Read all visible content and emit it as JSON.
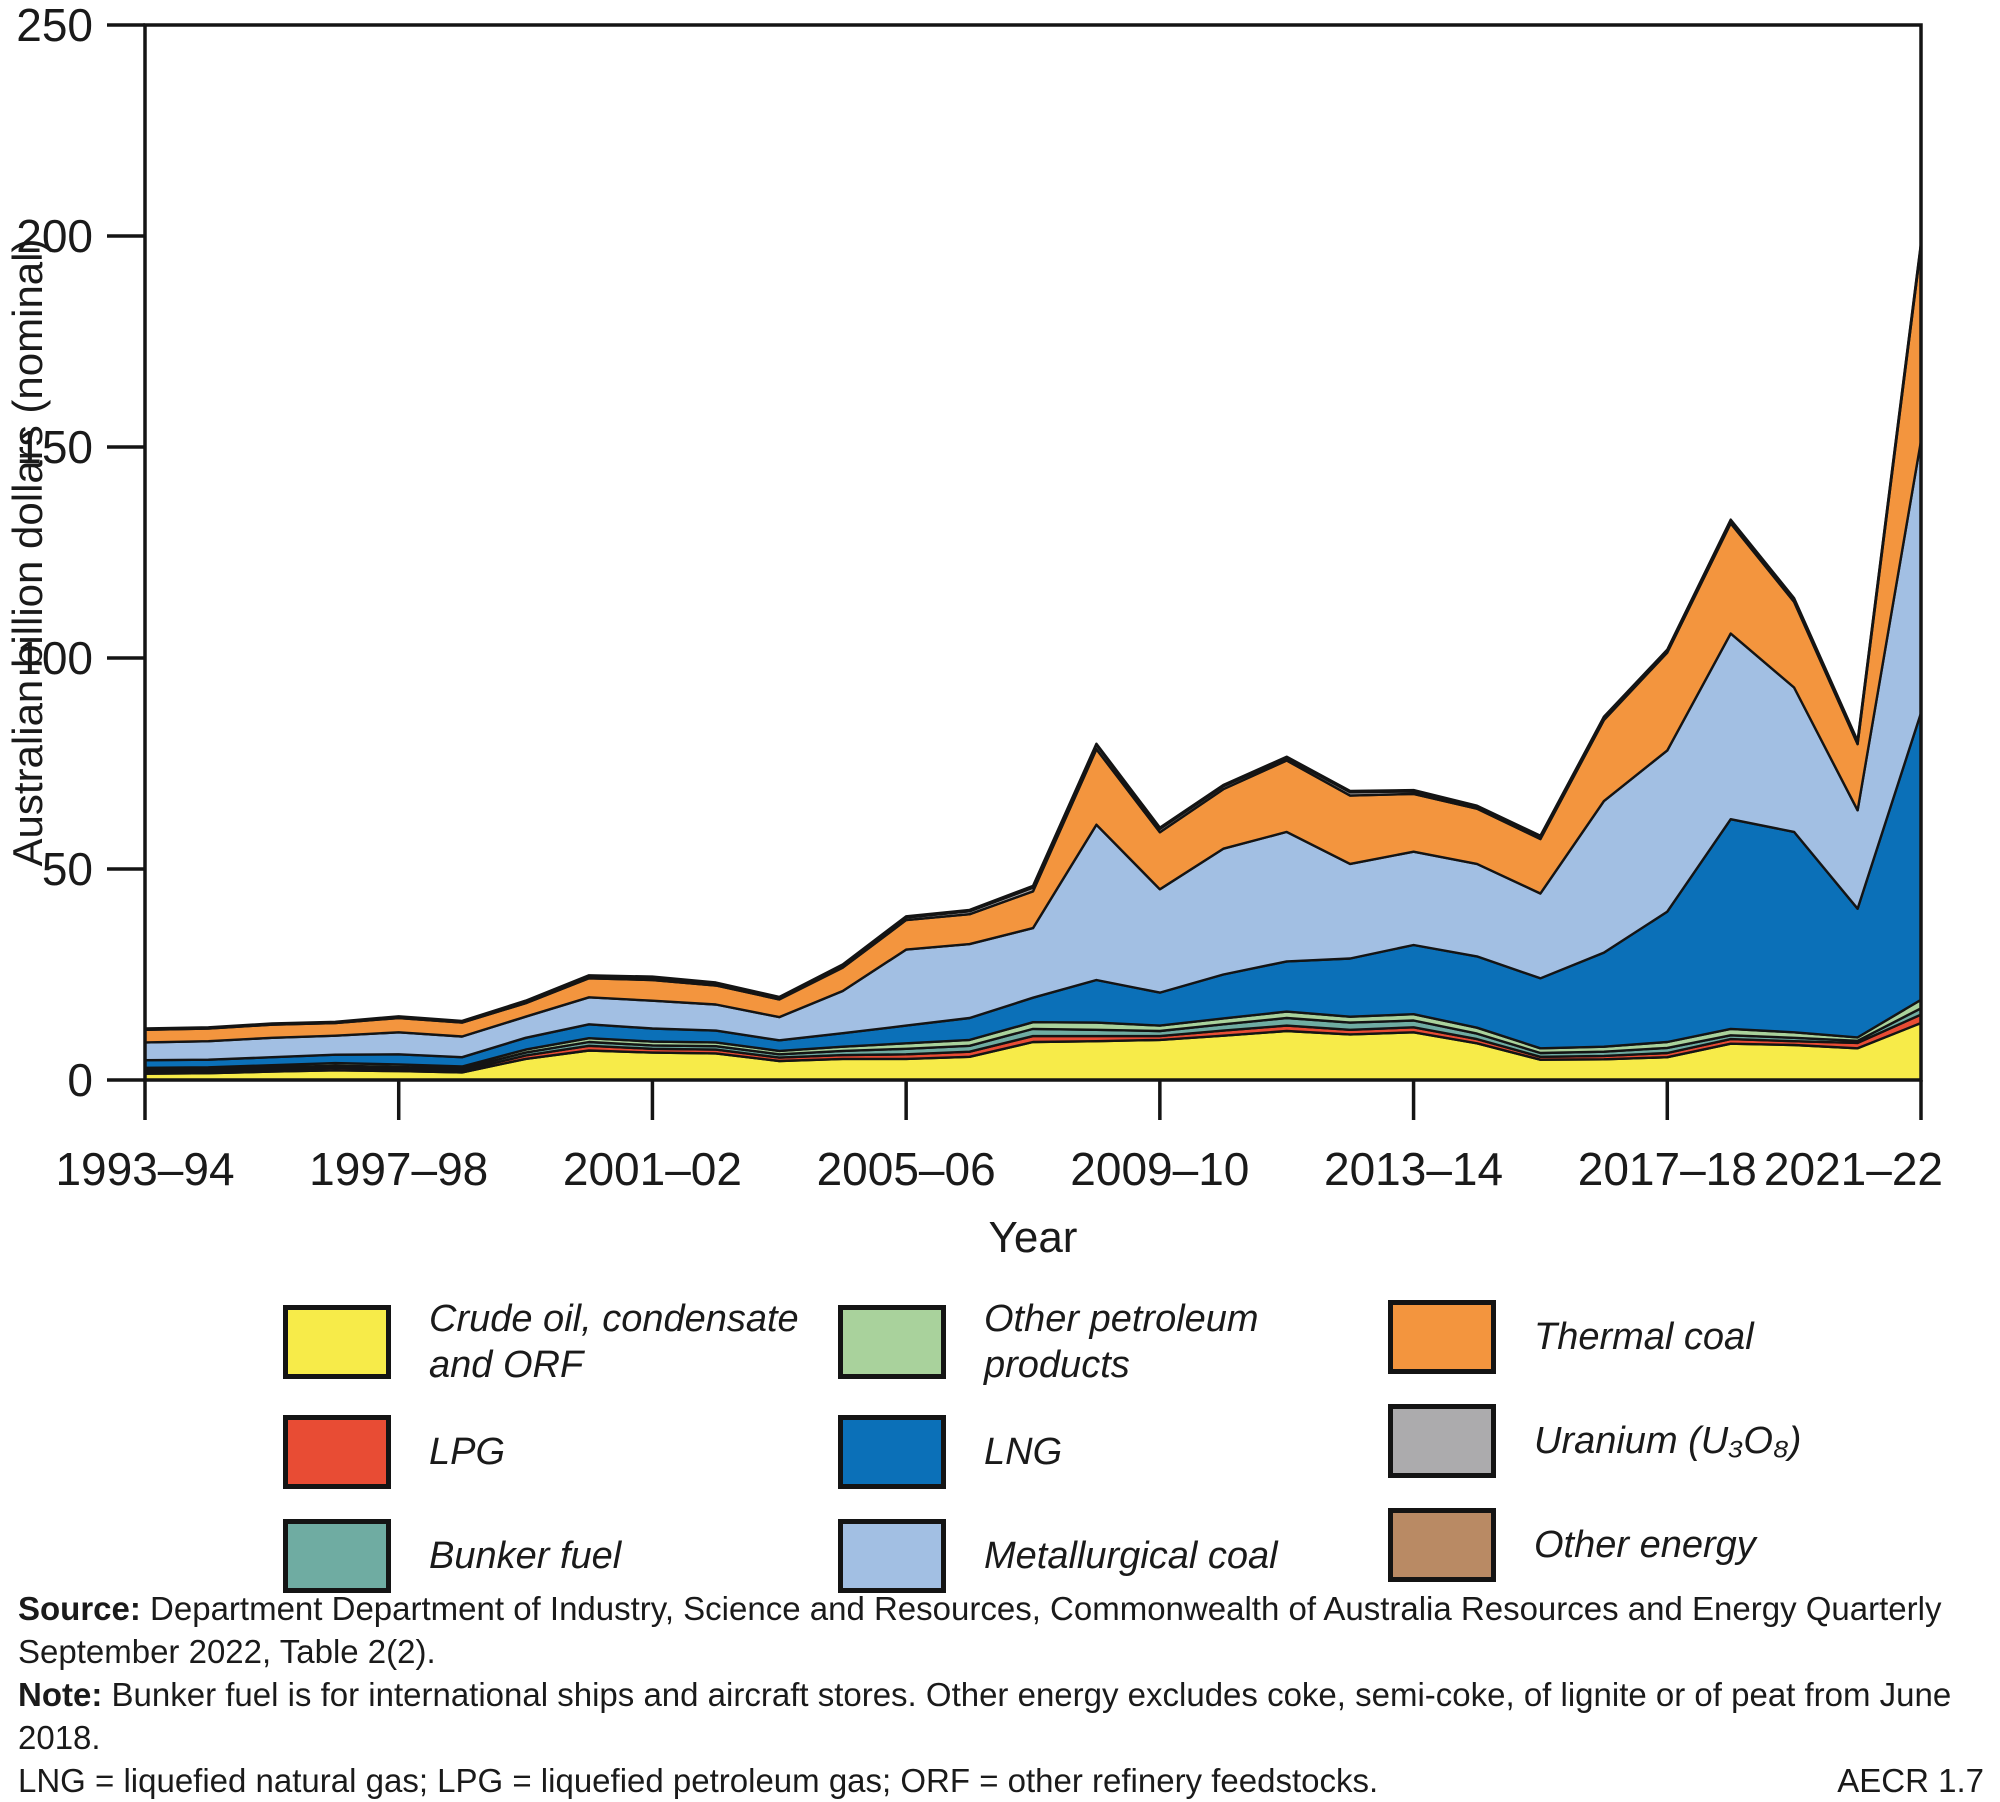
{
  "chart_data": {
    "type": "area",
    "stacked": true,
    "title": "",
    "xlabel": "Year",
    "ylabel": "Australian billion dollars (nominal)",
    "ylim": [
      0,
      250
    ],
    "y_ticks": [
      0,
      50,
      100,
      150,
      200,
      250
    ],
    "y_tick_labels": [
      "0",
      "50",
      "100",
      "150",
      "200",
      "250"
    ],
    "x_tick_indices": [
      0,
      4,
      8,
      12,
      16,
      20,
      24,
      28
    ],
    "x_tick_labels": [
      "1993–94",
      "1997–98",
      "2001–02",
      "2005–06",
      "2009–10",
      "2013–14",
      "2017–18",
      "2021–22"
    ],
    "grid": false,
    "legend_position": "bottom",
    "categories": [
      "1993–94",
      "1994–95",
      "1995–96",
      "1996–97",
      "1997–98",
      "1998–99",
      "1999–00",
      "2000–01",
      "2001–02",
      "2002–03",
      "2003–04",
      "2004–05",
      "2005–06",
      "2006–07",
      "2007–08",
      "2008–09",
      "2009–10",
      "2010–11",
      "2011–12",
      "2012–13",
      "2013–14",
      "2014–15",
      "2015–16",
      "2016–17",
      "2017–18",
      "2018–19",
      "2019–20",
      "2020–21",
      "2021–22"
    ],
    "series": [
      {
        "name": "Crude oil, condensate and ORF",
        "color": "#F7EB49",
        "values": [
          1.5,
          1.6,
          2.0,
          2.3,
          2.1,
          1.8,
          5.0,
          7.0,
          6.5,
          6.3,
          4.5,
          5.0,
          5.0,
          5.5,
          9.0,
          9.2,
          9.5,
          10.5,
          11.6,
          10.8,
          11.3,
          8.7,
          4.8,
          4.9,
          5.4,
          8.6,
          8.3,
          7.5,
          13.5
        ]
      },
      {
        "name": "LPG",
        "color": "#E84C34",
        "values": [
          0.4,
          0.4,
          0.5,
          0.6,
          0.5,
          0.4,
          0.8,
          1.1,
          0.9,
          0.9,
          0.8,
          0.9,
          1.1,
          1.2,
          1.4,
          1.2,
          0.9,
          1.2,
          1.3,
          1.1,
          1.2,
          1.0,
          0.7,
          0.8,
          1.0,
          1.1,
          0.9,
          1.3,
          2.0
        ]
      },
      {
        "name": "Bunker fuel",
        "color": "#6FACA2",
        "values": [
          0.5,
          0.5,
          0.5,
          0.5,
          0.5,
          0.5,
          0.7,
          0.9,
          0.8,
          0.8,
          0.8,
          1.0,
          1.3,
          1.4,
          1.7,
          1.5,
          1.2,
          1.5,
          1.8,
          1.7,
          1.6,
          1.3,
          0.9,
          1.0,
          1.2,
          0.9,
          0.8,
          0.5,
          1.5
        ]
      },
      {
        "name": "Other petroleum products",
        "color": "#A9D29C",
        "values": [
          0.5,
          0.5,
          0.5,
          0.6,
          0.6,
          0.5,
          0.7,
          0.9,
          0.9,
          0.9,
          0.8,
          1.0,
          1.3,
          1.4,
          1.6,
          1.7,
          1.3,
          1.4,
          1.5,
          1.4,
          1.5,
          1.4,
          1.1,
          1.2,
          1.4,
          1.5,
          1.3,
          0.8,
          2.0
        ]
      },
      {
        "name": "LNG",
        "color": "#0B70B8",
        "values": [
          1.8,
          1.8,
          1.9,
          2.0,
          2.4,
          2.2,
          2.8,
          3.3,
          3.1,
          2.8,
          2.5,
          3.2,
          4.2,
          5.2,
          5.8,
          10.1,
          7.8,
          10.4,
          11.9,
          13.8,
          16.4,
          16.9,
          16.6,
          22.3,
          30.9,
          49.7,
          47.5,
          30.5,
          68.0
        ]
      },
      {
        "name": "Metallurgical coal",
        "color": "#A2BFE3",
        "values": [
          4.2,
          4.4,
          4.6,
          4.5,
          5.2,
          4.9,
          5.0,
          6.4,
          6.6,
          6.2,
          5.5,
          10.0,
          18.0,
          17.5,
          16.5,
          36.8,
          24.5,
          29.8,
          30.7,
          22.4,
          22.1,
          21.9,
          20.1,
          35.9,
          38.2,
          44.0,
          34.2,
          23.3,
          64.5
        ]
      },
      {
        "name": "Thermal coal",
        "color": "#F3953E",
        "values": [
          3.0,
          3.0,
          3.1,
          3.0,
          3.4,
          3.3,
          3.2,
          4.5,
          4.9,
          4.5,
          4.2,
          5.5,
          7.0,
          7.1,
          8.7,
          17.9,
          13.5,
          14.1,
          16.9,
          16.2,
          13.7,
          13.1,
          12.9,
          19.2,
          23.2,
          26.1,
          20.3,
          15.7,
          46.0
        ]
      },
      {
        "name": "Uranium (U₃O₈)",
        "color": "#ACABAD",
        "values": [
          0.2,
          0.2,
          0.2,
          0.2,
          0.3,
          0.3,
          0.4,
          0.5,
          0.6,
          0.5,
          0.4,
          0.5,
          0.6,
          0.7,
          0.9,
          1.0,
          0.8,
          0.7,
          0.6,
          0.8,
          0.6,
          0.5,
          0.6,
          0.6,
          0.6,
          0.7,
          0.7,
          0.6,
          0.6
        ]
      },
      {
        "name": "Other energy",
        "color": "#B98A64",
        "values": [
          0.1,
          0.1,
          0.1,
          0.1,
          0.1,
          0.1,
          0.2,
          0.2,
          0.2,
          0.2,
          0.2,
          0.3,
          0.3,
          0.3,
          0.4,
          0.3,
          0.3,
          0.3,
          0.3,
          0.3,
          0.3,
          0.2,
          0.2,
          0.2,
          0.1,
          0.2,
          0.2,
          0.2,
          0.3
        ]
      }
    ]
  },
  "axes": {
    "x_title": "Year",
    "y_title": "Australian billion dollars (nominal)"
  },
  "legend": {
    "items": [
      {
        "label": "Crude oil, condensate and ORF",
        "color": "#F7EB49"
      },
      {
        "label": "LPG",
        "color": "#E84C34"
      },
      {
        "label": "Bunker fuel",
        "color": "#6FACA2"
      },
      {
        "label": "Other petroleum products",
        "color": "#A9D29C"
      },
      {
        "label": "LNG",
        "color": "#0B70B8"
      },
      {
        "label": "Metallurgical coal",
        "color": "#A2BFE3"
      },
      {
        "label": "Thermal coal",
        "color": "#F3953E"
      },
      {
        "label": "Uranium (U₃O₈)",
        "color": "#ACABAD"
      },
      {
        "label": "Other energy",
        "color": "#B98A64"
      }
    ]
  },
  "notes": {
    "source_label": "Source:",
    "source_text": " Department Department of Industry, Science and Resources, Commonwealth of Australia Resources and Energy Quarterly September 2022, Table 2(2).",
    "note_label": "Note:",
    "note_text": " Bunker fuel is for international ships and aircraft stores. Other energy excludes coke, semi-coke, of lignite or of peat from June 2018.",
    "abbrev_text": "LNG = liquefied natural gas; LPG = liquefied petroleum gas; ORF = other refinery feedstocks.",
    "figure_code": "AECR 1.7"
  }
}
